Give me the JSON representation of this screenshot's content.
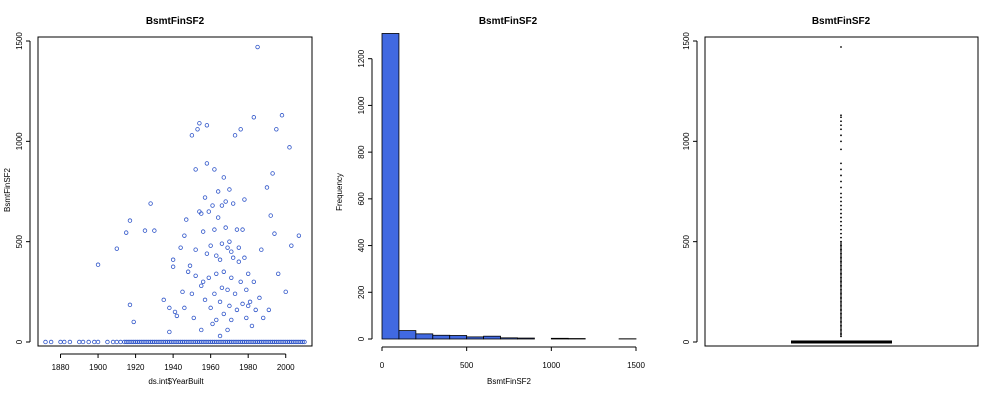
{
  "chart_data": [
    {
      "type": "scatter",
      "title": "BsmtFinSF2",
      "xlabel": "ds.int$YearBuilt",
      "ylabel": "BsmtFinSF2",
      "xlim": [
        1868,
        2014
      ],
      "ylim": [
        -20,
        1520
      ],
      "xticks": [
        1880,
        1900,
        1920,
        1940,
        1960,
        1980,
        2000
      ],
      "yticks": [
        0,
        500,
        1000,
        1500
      ],
      "xtick_labels": [
        "1880",
        "1900",
        "1920",
        "1940",
        "1960",
        "1980",
        "2000"
      ],
      "ytick_labels": [
        "0",
        "500",
        "1000",
        "1500"
      ],
      "point_color": "#2f55c9",
      "zero_years": [
        1872,
        1875,
        1880,
        1882,
        1885,
        1890,
        1892,
        1895,
        1898,
        1900,
        1905,
        1908,
        1910,
        1912,
        1914,
        1915,
        1916,
        1917,
        1918,
        1919,
        1920,
        1921,
        1922,
        1923,
        1924,
        1925,
        1926,
        1927,
        1928,
        1929,
        1930,
        1931,
        1932,
        1933,
        1934,
        1935,
        1936,
        1937,
        1938,
        1939,
        1940,
        1941,
        1942,
        1943,
        1944,
        1945,
        1946,
        1947,
        1948,
        1949,
        1950,
        1951,
        1952,
        1953,
        1954,
        1955,
        1956,
        1957,
        1958,
        1959,
        1960,
        1961,
        1962,
        1963,
        1964,
        1965,
        1966,
        1967,
        1968,
        1969,
        1970,
        1971,
        1972,
        1973,
        1974,
        1975,
        1976,
        1977,
        1978,
        1979,
        1980,
        1981,
        1982,
        1983,
        1984,
        1985,
        1986,
        1987,
        1988,
        1989,
        1990,
        1991,
        1992,
        1993,
        1994,
        1995,
        1996,
        1997,
        1998,
        1999,
        2000,
        2001,
        2002,
        2003,
        2004,
        2005,
        2006,
        2007,
        2008,
        2009,
        2010
      ],
      "points": [
        [
          1900,
          385
        ],
        [
          1910,
          465
        ],
        [
          1915,
          545
        ],
        [
          1917,
          605
        ],
        [
          1917,
          185
        ],
        [
          1919,
          100
        ],
        [
          1925,
          555
        ],
        [
          1928,
          690
        ],
        [
          1930,
          555
        ],
        [
          1935,
          210
        ],
        [
          1938,
          170
        ],
        [
          1938,
          50
        ],
        [
          1940,
          410
        ],
        [
          1940,
          375
        ],
        [
          1941,
          150
        ],
        [
          1942,
          130
        ],
        [
          1944,
          470
        ],
        [
          1945,
          250
        ],
        [
          1946,
          170
        ],
        [
          1946,
          530
        ],
        [
          1947,
          610
        ],
        [
          1948,
          350
        ],
        [
          1949,
          380
        ],
        [
          1950,
          1030
        ],
        [
          1950,
          240
        ],
        [
          1951,
          120
        ],
        [
          1952,
          460
        ],
        [
          1952,
          860
        ],
        [
          1952,
          330
        ],
        [
          1953,
          1060
        ],
        [
          1954,
          650
        ],
        [
          1954,
          1090
        ],
        [
          1955,
          280
        ],
        [
          1955,
          640
        ],
        [
          1955,
          60
        ],
        [
          1956,
          550
        ],
        [
          1956,
          300
        ],
        [
          1957,
          720
        ],
        [
          1957,
          210
        ],
        [
          1958,
          890
        ],
        [
          1958,
          440
        ],
        [
          1958,
          1080
        ],
        [
          1959,
          650
        ],
        [
          1959,
          320
        ],
        [
          1960,
          480
        ],
        [
          1960,
          170
        ],
        [
          1961,
          680
        ],
        [
          1961,
          90
        ],
        [
          1962,
          860
        ],
        [
          1962,
          560
        ],
        [
          1962,
          240
        ],
        [
          1963,
          430
        ],
        [
          1963,
          340
        ],
        [
          1963,
          110
        ],
        [
          1964,
          620
        ],
        [
          1964,
          750
        ],
        [
          1965,
          410
        ],
        [
          1965,
          200
        ],
        [
          1965,
          30
        ],
        [
          1966,
          680
        ],
        [
          1966,
          490
        ],
        [
          1966,
          270
        ],
        [
          1967,
          820
        ],
        [
          1967,
          350
        ],
        [
          1967,
          140
        ],
        [
          1968,
          570
        ],
        [
          1968,
          700
        ],
        [
          1969,
          470
        ],
        [
          1969,
          260
        ],
        [
          1969,
          60
        ],
        [
          1970,
          760
        ],
        [
          1970,
          500
        ],
        [
          1970,
          180
        ],
        [
          1971,
          450
        ],
        [
          1971,
          320
        ],
        [
          1971,
          110
        ],
        [
          1972,
          690
        ],
        [
          1972,
          420
        ],
        [
          1973,
          240
        ],
        [
          1973,
          1030
        ],
        [
          1974,
          560
        ],
        [
          1974,
          160
        ],
        [
          1975,
          400
        ],
        [
          1975,
          470
        ],
        [
          1976,
          1060
        ],
        [
          1976,
          300
        ],
        [
          1977,
          560
        ],
        [
          1977,
          190
        ],
        [
          1978,
          420
        ],
        [
          1978,
          710
        ],
        [
          1979,
          260
        ],
        [
          1979,
          120
        ],
        [
          1980,
          340
        ],
        [
          1980,
          180
        ],
        [
          1981,
          200
        ],
        [
          1982,
          80
        ],
        [
          1983,
          1120
        ],
        [
          1983,
          300
        ],
        [
          1984,
          160
        ],
        [
          1985,
          1470
        ],
        [
          1986,
          220
        ],
        [
          1987,
          460
        ],
        [
          1988,
          120
        ],
        [
          1990,
          770
        ],
        [
          1991,
          160
        ],
        [
          1992,
          630
        ],
        [
          1993,
          840
        ],
        [
          1994,
          540
        ],
        [
          1995,
          1060
        ],
        [
          1996,
          340
        ],
        [
          1998,
          1130
        ],
        [
          2000,
          250
        ],
        [
          2002,
          970
        ],
        [
          2003,
          480
        ],
        [
          2007,
          530
        ]
      ]
    },
    {
      "type": "bar",
      "title": "BsmtFinSF2",
      "xlabel": "BsmtFinSF2",
      "ylabel": "Frequency",
      "bin_edges": [
        0,
        100,
        200,
        300,
        400,
        500,
        600,
        700,
        800,
        900,
        1000,
        1100,
        1200,
        1300,
        1400,
        1500
      ],
      "values": [
        1308,
        36,
        22,
        16,
        15,
        9,
        12,
        5,
        4,
        0,
        3,
        2,
        0,
        0,
        1
      ],
      "xlim": [
        0,
        1500
      ],
      "ylim": [
        0,
        1340
      ],
      "xticks": [
        0,
        500,
        1000,
        1500
      ],
      "yticks": [
        0,
        200,
        400,
        600,
        800,
        1000,
        1200
      ],
      "xtick_labels": [
        "0",
        "500",
        "1000",
        "1500"
      ],
      "ytick_labels": [
        "0",
        "200",
        "400",
        "600",
        "800",
        "1000",
        "1200"
      ],
      "bar_color": "#4169e1"
    },
    {
      "type": "boxplot",
      "title": "BsmtFinSF2",
      "ylim": [
        -20,
        1520
      ],
      "yticks": [
        0,
        500,
        1000,
        1500
      ],
      "ytick_labels": [
        "0",
        "500",
        "1000",
        "1500"
      ],
      "median": 0,
      "q1": 0,
      "q3": 0,
      "outliers": [
        28,
        40,
        60,
        80,
        100,
        120,
        140,
        160,
        180,
        200,
        220,
        240,
        260,
        280,
        300,
        320,
        340,
        360,
        380,
        400,
        420,
        440,
        460,
        480,
        500,
        520,
        540,
        560,
        580,
        600,
        620,
        640,
        660,
        680,
        700,
        720,
        740,
        770,
        800,
        830,
        860,
        890,
        960,
        1000,
        1030,
        1060,
        1080,
        1100,
        1120,
        1130,
        1470
      ]
    }
  ]
}
